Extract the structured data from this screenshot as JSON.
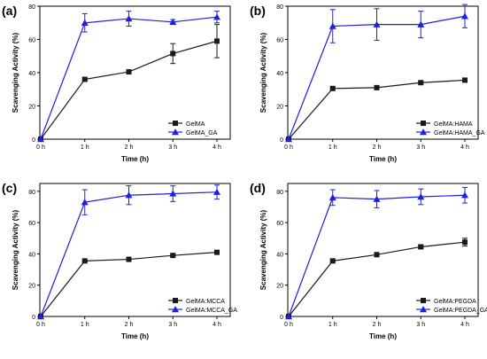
{
  "colors": {
    "series_black": "#1a1a1a",
    "series_blue": "#1f1fe0",
    "axis": "#000000"
  },
  "chart_data": [
    {
      "panel_label": "(a)",
      "type": "line",
      "xlabel": "Time (h)",
      "ylabel": "Scavenging Activity (%)",
      "categories": [
        "0 h",
        "1 h",
        "2 h",
        "3 h",
        "4 h"
      ],
      "ylim": [
        0,
        80
      ],
      "yticks": [
        0,
        20,
        40,
        60,
        80
      ],
      "legend_position": "bottom-right",
      "series": [
        {
          "name": "GelMA",
          "marker": "square",
          "color": "#1a1a1a",
          "values": [
            0,
            36,
            40.5,
            51.5,
            59
          ],
          "errors": [
            0,
            0.8,
            1,
            6,
            10
          ]
        },
        {
          "name": "GelMA_GA",
          "marker": "triangle",
          "color": "#1f1fe0",
          "values": [
            0,
            70,
            72.5,
            70.5,
            73.5
          ],
          "errors": [
            0,
            5.5,
            4.5,
            1.5,
            3.5
          ]
        }
      ]
    },
    {
      "panel_label": "(b)",
      "type": "line",
      "xlabel": "Time (h)",
      "ylabel": "Scavenging Activity (%)",
      "categories": [
        "0 h",
        "1 h",
        "2 h",
        "3 h",
        "4 h"
      ],
      "ylim": [
        0,
        80
      ],
      "yticks": [
        0,
        20,
        40,
        60,
        80
      ],
      "legend_position": "bottom-right",
      "series": [
        {
          "name": "GelMA:HAMA",
          "marker": "square",
          "color": "#1a1a1a",
          "values": [
            0,
            30.5,
            31,
            34,
            35.5
          ],
          "errors": [
            0,
            0.8,
            0.8,
            0.8,
            1
          ]
        },
        {
          "name": "GelMA:HAMA_GA",
          "marker": "triangle",
          "color": "#1f1fe0",
          "values": [
            0,
            68,
            69,
            69,
            74
          ],
          "errors": [
            0,
            10,
            9.5,
            8,
            7
          ]
        }
      ]
    },
    {
      "panel_label": "(c)",
      "type": "line",
      "xlabel": "Time (h)",
      "ylabel": "Scavenging Activity (%)",
      "categories": [
        "0 h",
        "1 h",
        "2 h",
        "3 h",
        "4 h"
      ],
      "ylim": [
        0,
        85
      ],
      "yticks": [
        0,
        20,
        40,
        60,
        80
      ],
      "legend_position": "bottom-right",
      "series": [
        {
          "name": "GelMA:MCCA",
          "marker": "square",
          "color": "#1a1a1a",
          "values": [
            0,
            35.5,
            36.5,
            39,
            41
          ],
          "errors": [
            0,
            0.5,
            0.5,
            0.8,
            0.8
          ]
        },
        {
          "name": "GelMA:MCCA_GA",
          "marker": "triangle",
          "color": "#1f1fe0",
          "values": [
            0,
            73,
            77.5,
            78.5,
            79.5
          ],
          "errors": [
            0,
            8,
            6,
            5,
            4.5
          ]
        }
      ]
    },
    {
      "panel_label": "(d)",
      "type": "line",
      "xlabel": "Time (h)",
      "ylabel": "Scavenging Activity (%)",
      "categories": [
        "0 h",
        "1 h",
        "2 h",
        "3 h",
        "4 h"
      ],
      "ylim": [
        0,
        85
      ],
      "yticks": [
        0,
        20,
        40,
        60,
        80
      ],
      "legend_position": "bottom-right",
      "series": [
        {
          "name": "GelMA:PEGDA",
          "marker": "square",
          "color": "#1a1a1a",
          "values": [
            0,
            35.5,
            39.5,
            44.5,
            47.5
          ],
          "errors": [
            0,
            0.8,
            0.8,
            1,
            2.5
          ]
        },
        {
          "name": "GelMA:PEGDA_GA",
          "marker": "triangle",
          "color": "#1f1fe0",
          "values": [
            0,
            76,
            75,
            76.5,
            77.5
          ],
          "errors": [
            0,
            5,
            5.5,
            5,
            5
          ]
        }
      ]
    }
  ]
}
